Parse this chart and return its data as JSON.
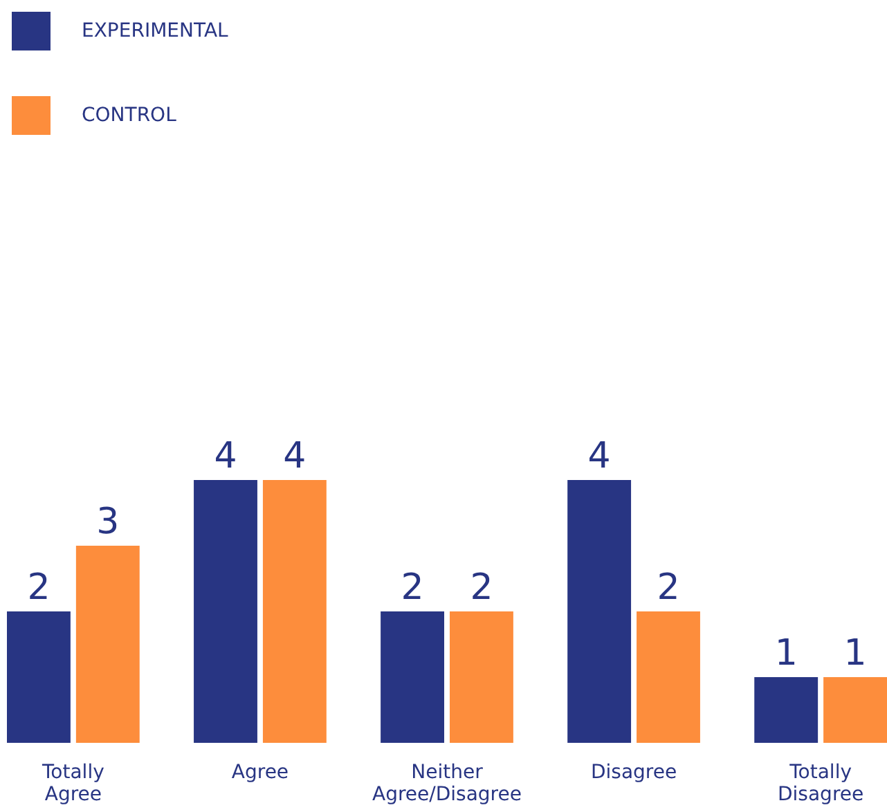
{
  "chart_data": {
    "type": "bar",
    "categories": [
      "Totally Agree",
      "Agree",
      "Neither Agree/Disagree",
      "Disagree",
      "Totally Disagree"
    ],
    "series": [
      {
        "name": "EXPERIMENTAL",
        "color": "#283583",
        "values": [
          2,
          4,
          2,
          4,
          1
        ]
      },
      {
        "name": "CONTROL",
        "color": "#fd8d3c",
        "values": [
          3,
          4,
          2,
          2,
          1
        ]
      }
    ],
    "data_labels": true,
    "legend": "top left",
    "grid": false
  }
}
